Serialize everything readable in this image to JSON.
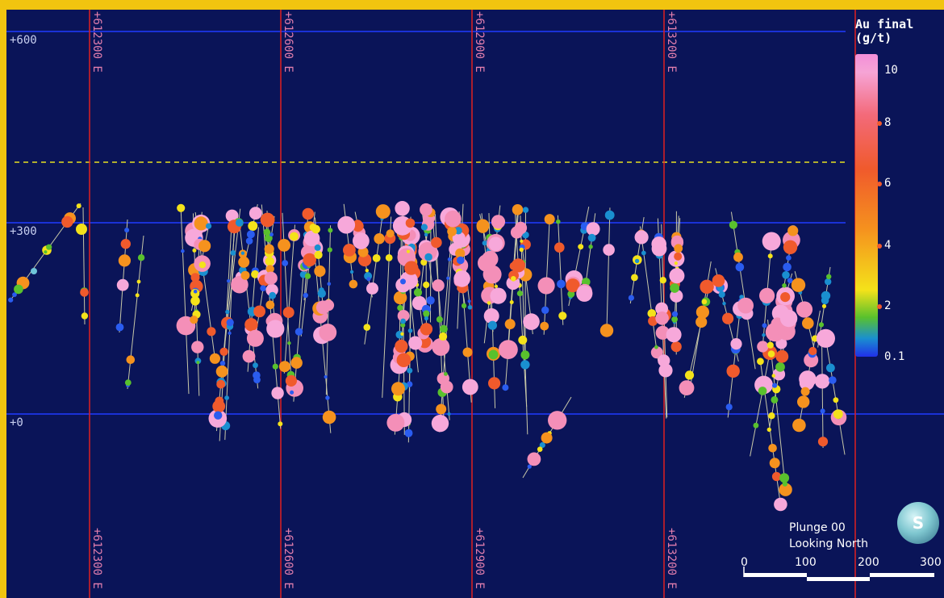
{
  "elevation_labels": [
    "+600",
    "+300",
    "+0"
  ],
  "easting_labels": [
    "+612300 E",
    "+612600 E",
    "+612900 E",
    "+613200 E"
  ],
  "legend": {
    "title": "Au final (g/t)",
    "ticks": [
      "10",
      "8",
      "6",
      "4",
      "2",
      "0.1"
    ]
  },
  "view_info": {
    "line1": "Plunge 00",
    "line2": "Looking North"
  },
  "scale_bar": {
    "labels": [
      "0",
      "100",
      "200",
      "300"
    ]
  },
  "compass": {
    "letter": "S"
  },
  "colors": {
    "frame": "#f1c40f",
    "background": "#0a1458",
    "easting_lines": "#e02020",
    "elevation_lines": "#1f3bff",
    "dashed_line": "#e8e020",
    "label_pink": "#e37fae",
    "label_white": "#c8cff0"
  }
}
